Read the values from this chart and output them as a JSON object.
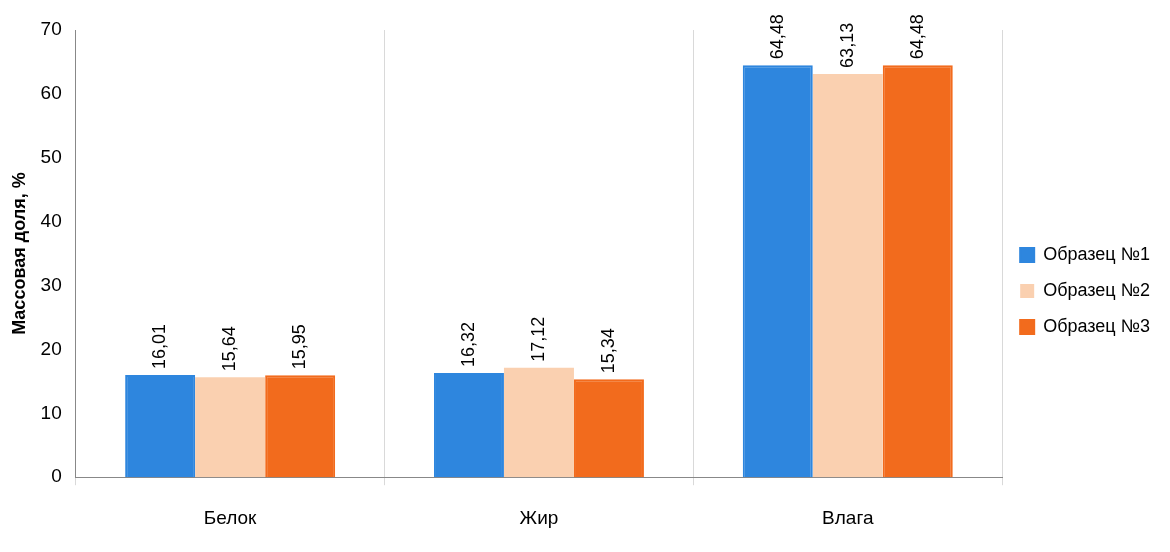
{
  "chart_data": {
    "type": "bar",
    "ylabel": "Массовая доля, %",
    "categories": [
      "Белок",
      "Жир",
      "Влага"
    ],
    "series": [
      {
        "name": "Образец №1",
        "color": "#2e86de",
        "values": [
          16.01,
          16.32,
          64.48
        ],
        "value_labels": [
          "16,01",
          "16,32",
          "64,48"
        ]
      },
      {
        "name": "Образец №2",
        "color": "#fad0b0",
        "values": [
          15.64,
          17.12,
          63.13
        ],
        "value_labels": [
          "15,64",
          "17,12",
          "63,13"
        ]
      },
      {
        "name": "Образец №3",
        "color": "#f26b1d",
        "values": [
          15.95,
          15.34,
          64.48
        ],
        "value_labels": [
          "15,95",
          "15,34",
          "64,48"
        ]
      }
    ],
    "ylim": [
      0,
      70
    ],
    "yticks": [
      0,
      10,
      20,
      30,
      40,
      50,
      60,
      70
    ],
    "grid": "x",
    "legend": "right"
  }
}
